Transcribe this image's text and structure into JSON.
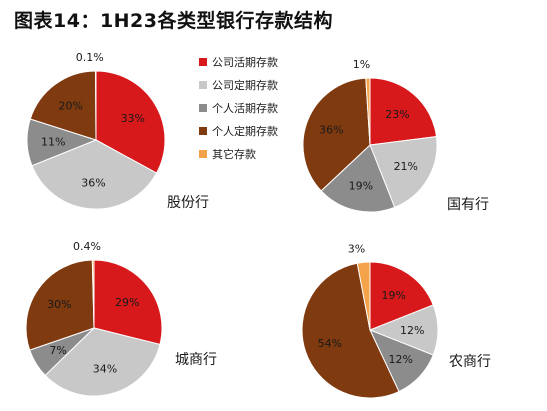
{
  "title": "图表14：1H23各类型银行存款结构",
  "colors": {
    "corp_demand": "#d7191c",
    "corp_time": "#c8c8c8",
    "pers_demand": "#8c8c8c",
    "pers_time": "#7f3a10",
    "other": "#f5a34b"
  },
  "chart_data": [
    {
      "type": "pie",
      "name": "股份行",
      "legend": [
        "公司活期存款",
        "公司定期存款",
        "个人活期存款",
        "个人定期存款",
        "其它存款"
      ],
      "values": [
        33,
        36,
        11,
        20,
        0.1
      ],
      "labels": [
        "33%",
        "36%",
        "11%",
        "20%",
        "0.1%"
      ]
    },
    {
      "type": "pie",
      "name": "国有行",
      "legend": [
        "公司活期存款",
        "公司定期存款",
        "个人活期存款",
        "个人定期存款",
        "其它存款"
      ],
      "values": [
        23,
        21,
        19,
        36,
        1
      ],
      "labels": [
        "23%",
        "21%",
        "19%",
        "36%",
        "1%"
      ]
    },
    {
      "type": "pie",
      "name": "城商行",
      "legend": [
        "公司活期存款",
        "公司定期存款",
        "个人活期存款",
        "个人定期存款",
        "其它存款"
      ],
      "values": [
        29,
        34,
        7,
        30,
        0.4
      ],
      "labels": [
        "29%",
        "34%",
        "7%",
        "30%",
        "0.4%"
      ]
    },
    {
      "type": "pie",
      "name": "农商行",
      "legend": [
        "公司活期存款",
        "公司定期存款",
        "个人活期存款",
        "个人定期存款",
        "其它存款"
      ],
      "values": [
        19,
        12,
        12,
        54,
        3
      ],
      "labels": [
        "19%",
        "12%",
        "12%",
        "54%",
        "3%"
      ]
    }
  ]
}
